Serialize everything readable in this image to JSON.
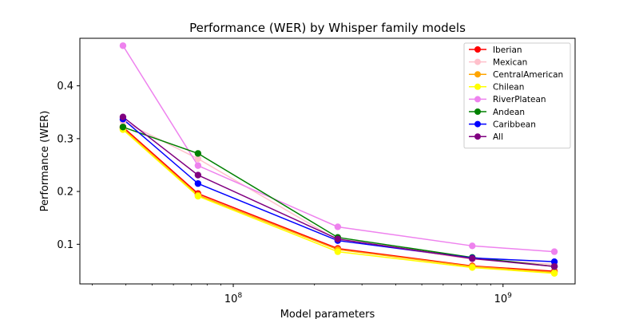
{
  "chart_data": {
    "type": "line",
    "title": "Performance (WER) by Whisper family models",
    "xlabel": "Model parameters",
    "ylabel": "Performance (WER)",
    "xscale": "log",
    "xlim": [
      27000000,
      1850000000
    ],
    "ylim": [
      0.025,
      0.49
    ],
    "x": [
      39000000,
      74000000,
      244000000,
      769000000,
      1550000000
    ],
    "x_ticks": [
      {
        "value": 100000000,
        "base": "10",
        "exp": "8"
      },
      {
        "value": 1000000000,
        "base": "10",
        "exp": "9"
      }
    ],
    "y_ticks": [
      {
        "value": 0.1,
        "label": "0.1"
      },
      {
        "value": 0.2,
        "label": "0.2"
      },
      {
        "value": 0.3,
        "label": "0.3"
      },
      {
        "value": 0.4,
        "label": "0.4"
      }
    ],
    "grid": false,
    "legend_position": "top-right",
    "series": [
      {
        "name": "Iberian",
        "color": "#ff0000",
        "values": [
          0.322,
          0.196,
          0.092,
          0.059,
          0.049
        ]
      },
      {
        "name": "Mexican",
        "color": "#ffc0cb",
        "values": [
          0.333,
          0.262,
          0.108,
          0.072,
          0.062
        ]
      },
      {
        "name": "CentralAmerican",
        "color": "#ffa500",
        "values": [
          0.319,
          0.193,
          0.09,
          0.058,
          0.047
        ]
      },
      {
        "name": "Chilean",
        "color": "#ffff00",
        "values": [
          0.317,
          0.191,
          0.086,
          0.056,
          0.045
        ]
      },
      {
        "name": "RiverPlatean",
        "color": "#ee82ee",
        "values": [
          0.476,
          0.249,
          0.133,
          0.097,
          0.086
        ]
      },
      {
        "name": "Andean",
        "color": "#008000",
        "values": [
          0.322,
          0.272,
          0.113,
          0.075,
          0.058
        ]
      },
      {
        "name": "Caribbean",
        "color": "#0000ff",
        "values": [
          0.337,
          0.215,
          0.107,
          0.074,
          0.067
        ]
      },
      {
        "name": "All",
        "color": "#800080",
        "values": [
          0.341,
          0.231,
          0.11,
          0.073,
          0.058
        ]
      }
    ]
  }
}
